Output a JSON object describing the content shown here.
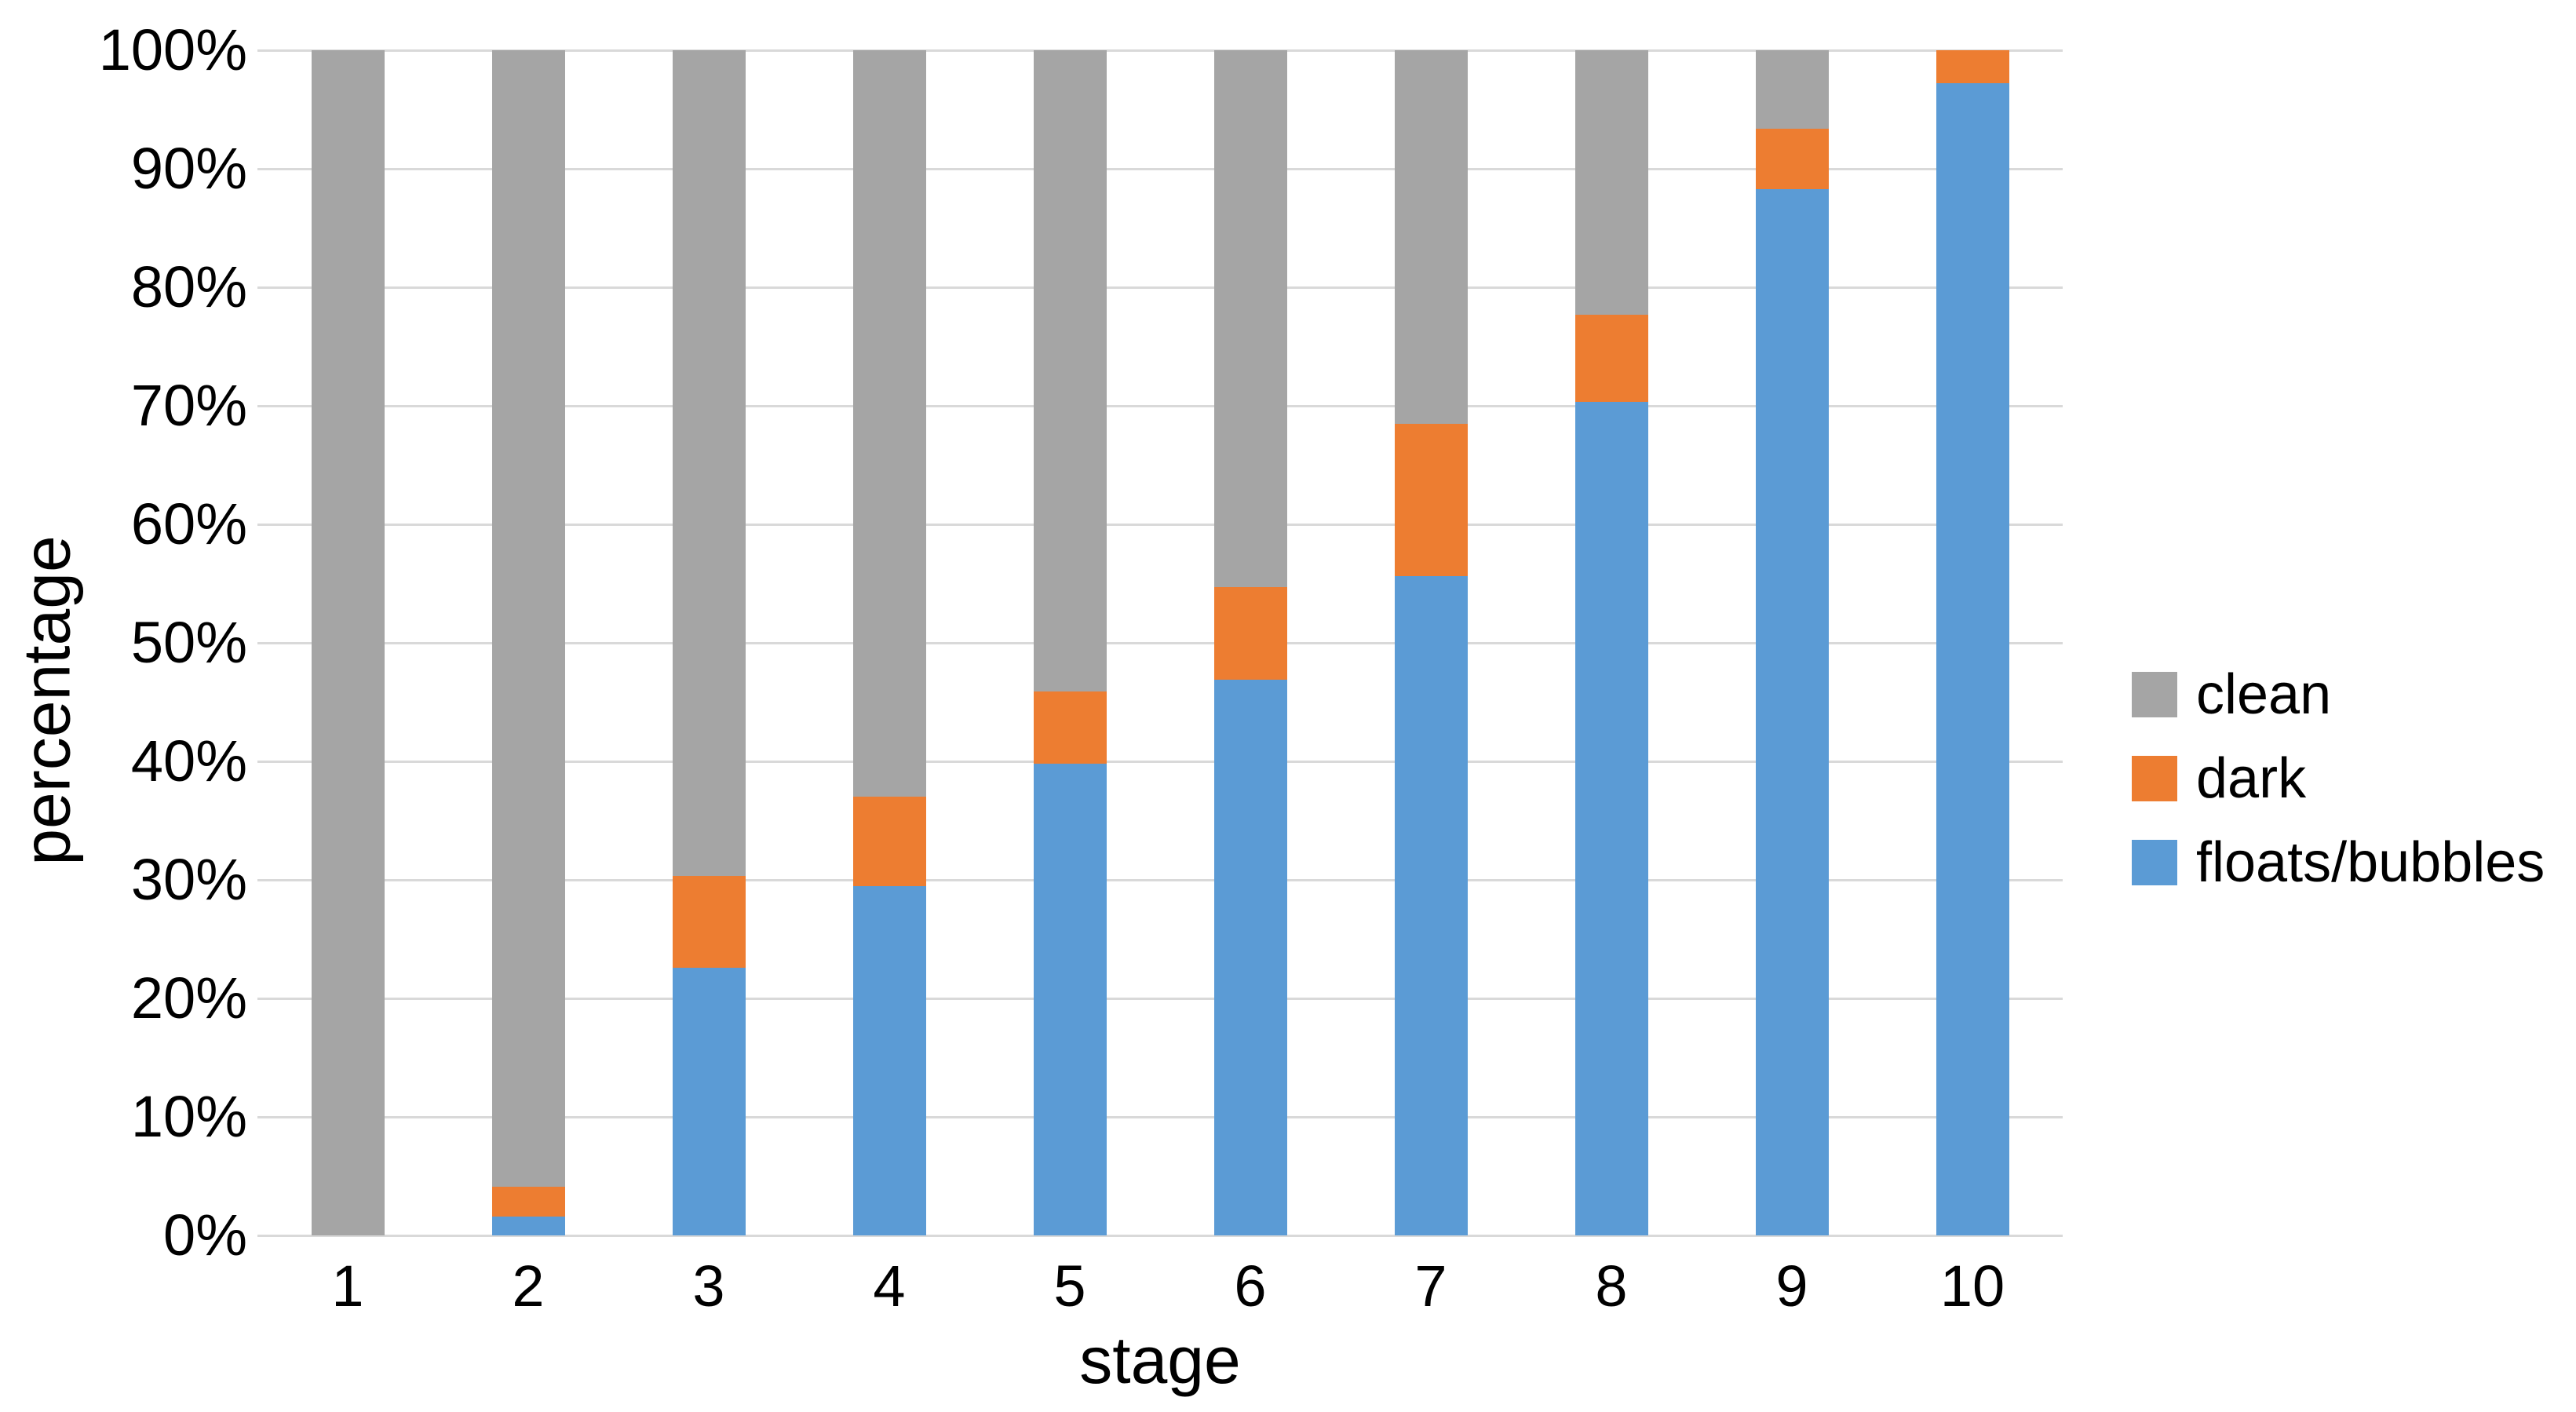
{
  "chart_data": {
    "type": "bar",
    "stacked": true,
    "percent_stacked": true,
    "title": "",
    "xlabel": "stage",
    "ylabel": "percentage",
    "categories": [
      "1",
      "2",
      "3",
      "4",
      "5",
      "6",
      "7",
      "8",
      "9",
      "10"
    ],
    "series": [
      {
        "name": "floats/bubbles",
        "color": "#5B9BD5",
        "values": [
          0,
          1.6,
          22.6,
          29.5,
          39.8,
          46.9,
          55.6,
          70.3,
          88.3,
          97.2
        ]
      },
      {
        "name": "dark",
        "color": "#ED7D31",
        "values": [
          0,
          2.5,
          7.7,
          7.5,
          6.1,
          7.8,
          12.9,
          7.4,
          5.1,
          2.8
        ]
      },
      {
        "name": "clean",
        "color": "#A5A5A5",
        "values": [
          100,
          95.9,
          69.7,
          63.0,
          54.1,
          45.3,
          31.5,
          22.3,
          6.6,
          0
        ]
      }
    ],
    "y_ticks": [
      "0%",
      "10%",
      "20%",
      "30%",
      "40%",
      "50%",
      "60%",
      "70%",
      "80%",
      "90%",
      "100%"
    ],
    "ylim": [
      0,
      100
    ],
    "grid": true,
    "gridline_color": "#D9D9D9",
    "background_color": "#FFFFFF",
    "text_color": "#000000",
    "legend_position": "right",
    "legend_order": [
      "clean",
      "dark",
      "floats/bubbles"
    ]
  }
}
